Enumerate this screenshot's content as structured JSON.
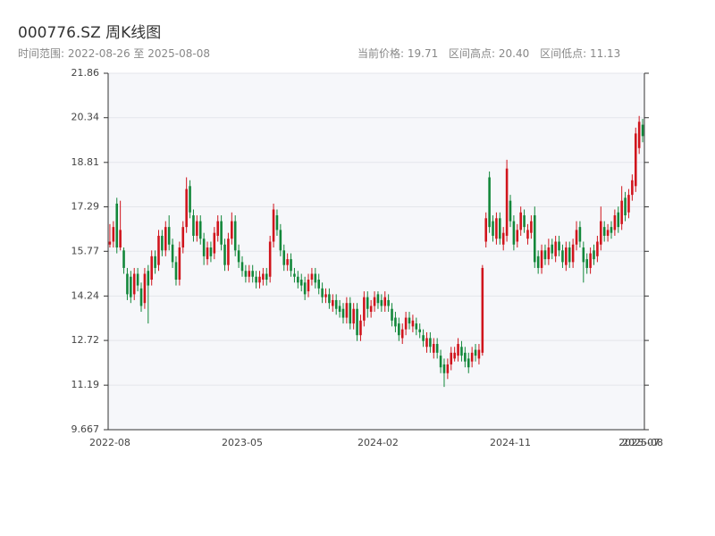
{
  "chart_data": {
    "type": "candlestick",
    "title": "000776.SZ 周K线图",
    "subtitle": "时间范围: 2022-08-26 至 2025-08-08",
    "stats": [
      "当前价格: 19.71",
      "区间高点: 20.40",
      "区间低点: 11.13"
    ],
    "categories": [
      "2022-08",
      null,
      null,
      null,
      null,
      null,
      null,
      null,
      null,
      null,
      null,
      null,
      null,
      null,
      null,
      null,
      null,
      null,
      null,
      null,
      null,
      null,
      null,
      null,
      null,
      null,
      null,
      null,
      null,
      null,
      null,
      null,
      null,
      null,
      null,
      null,
      null,
      null,
      "2023-05",
      null,
      null,
      null,
      null,
      null,
      null,
      null,
      null,
      null,
      null,
      null,
      null,
      null,
      null,
      null,
      null,
      null,
      null,
      null,
      null,
      null,
      null,
      null,
      null,
      null,
      null,
      null,
      null,
      null,
      null,
      null,
      null,
      null,
      null,
      null,
      null,
      null,
      null,
      "2024-02",
      null,
      null,
      null,
      null,
      null,
      null,
      null,
      null,
      null,
      null,
      null,
      null,
      null,
      null,
      null,
      null,
      null,
      null,
      null,
      null,
      null,
      null,
      null,
      null,
      null,
      null,
      null,
      null,
      null,
      null,
      null,
      null,
      null,
      null,
      null,
      null,
      null,
      "2024-11",
      null,
      null,
      null,
      null,
      null,
      null,
      null,
      null,
      null,
      null,
      null,
      null,
      null,
      null,
      null,
      null,
      null,
      null,
      null,
      null,
      null,
      null,
      null,
      null,
      null,
      null,
      null,
      null,
      null,
      null,
      null,
      null,
      null,
      null,
      null,
      null,
      "2025-07",
      "2025-08"
    ],
    "open": [
      16.0,
      16.1,
      17.4,
      15.9,
      15.8,
      15.0,
      14.9,
      14.3,
      15.0,
      14.5,
      14.0,
      15.1,
      14.8,
      15.6,
      15.3,
      16.3,
      15.8,
      16.6,
      16.0,
      15.4,
      14.8,
      15.9,
      16.6,
      18.0,
      17.0,
      16.3,
      16.8,
      16.2,
      15.5,
      15.9,
      15.7,
      16.3,
      16.8,
      16.0,
      15.3,
      16.2,
      16.8,
      15.8,
      15.4,
      15.1,
      14.9,
      15.1,
      14.9,
      14.7,
      14.8,
      15.0,
      14.9,
      16.1,
      17.0,
      16.5,
      15.8,
      15.3,
      15.5,
      15.0,
      14.9,
      14.8,
      14.7,
      14.4,
      14.8,
      15.0,
      14.8,
      14.5,
      14.2,
      14.3,
      13.9,
      14.1,
      13.9,
      13.8,
      13.5,
      14.0,
      13.3,
      13.8,
      12.9,
      13.4,
      14.2,
      13.7,
      13.9,
      14.3,
      14.1,
      13.9,
      14.1,
      13.8,
      13.5,
      13.3,
      12.8,
      13.1,
      13.5,
      13.2,
      13.3,
      13.1,
      12.9,
      12.5,
      12.8,
      12.3,
      12.6,
      12.2,
      11.9,
      11.6,
      11.9,
      12.1,
      12.2,
      12.5,
      12.3,
      12.1,
      12.0,
      12.4,
      12.1,
      12.3,
      16.1,
      18.3,
      16.8,
      16.2,
      16.9,
      16.0,
      16.3,
      17.5,
      16.8,
      16.1,
      16.5,
      17.0,
      16.2,
      16.4,
      17.0,
      15.6,
      15.2,
      15.8,
      15.5,
      16.0,
      15.6,
      16.1,
      15.8,
      15.3,
      15.9,
      15.4,
      16.0,
      16.6,
      15.9,
      15.5,
      15.2,
      15.8,
      15.6,
      16.0,
      16.6,
      16.3,
      16.6,
      16.5,
      17.1,
      16.7,
      17.6,
      17.1,
      17.7,
      18.0,
      19.3,
      20.1
    ],
    "close": [
      16.1,
      16.6,
      15.9,
      16.5,
      15.2,
      14.3,
      14.2,
      15.0,
      14.6,
      13.9,
      15.0,
      14.6,
      15.6,
      15.2,
      16.3,
      15.8,
      16.6,
      16.0,
      15.4,
      14.8,
      15.9,
      16.6,
      17.9,
      17.1,
      16.3,
      16.8,
      16.2,
      15.6,
      15.9,
      15.6,
      16.4,
      16.8,
      16.0,
      15.3,
      16.2,
      16.8,
      15.8,
      15.4,
      15.1,
      14.9,
      15.1,
      14.9,
      14.7,
      14.9,
      15.0,
      14.8,
      16.1,
      17.2,
      16.5,
      15.8,
      15.3,
      15.5,
      15.1,
      14.9,
      14.7,
      14.6,
      14.3,
      14.8,
      15.0,
      14.7,
      14.5,
      14.2,
      14.3,
      14.0,
      14.1,
      13.8,
      13.7,
      13.5,
      14.0,
      13.3,
      13.8,
      12.9,
      13.4,
      14.2,
      13.8,
      13.9,
      14.2,
      14.0,
      13.9,
      14.2,
      13.9,
      13.4,
      13.2,
      12.9,
      13.1,
      13.5,
      13.3,
      13.4,
      13.1,
      13.0,
      12.7,
      12.8,
      12.5,
      12.6,
      12.3,
      11.8,
      11.6,
      11.9,
      12.3,
      12.3,
      12.6,
      12.2,
      12.0,
      11.8,
      12.3,
      12.2,
      12.4,
      15.2,
      16.9,
      16.6,
      16.3,
      16.9,
      16.2,
      16.4,
      18.6,
      16.8,
      16.0,
      16.5,
      17.1,
      16.6,
      16.5,
      16.8,
      15.4,
      15.2,
      15.8,
      15.5,
      15.9,
      15.7,
      16.1,
      15.8,
      15.4,
      15.9,
      15.4,
      16.0,
      16.5,
      16.1,
      15.4,
      15.2,
      15.7,
      15.5,
      16.1,
      16.8,
      16.3,
      16.5,
      16.4,
      17.0,
      16.6,
      17.5,
      17.0,
      17.7,
      18.2,
      19.8,
      20.2,
      19.71
    ],
    "high": [
      16.7,
      16.8,
      17.6,
      17.5,
      15.9,
      15.2,
      15.1,
      15.2,
      15.2,
      14.7,
      15.2,
      15.3,
      15.8,
      15.8,
      16.5,
      16.5,
      16.8,
      17.0,
      16.2,
      15.6,
      16.1,
      16.8,
      18.3,
      18.2,
      17.2,
      17.0,
      17.0,
      16.4,
      16.1,
      16.1,
      16.6,
      17.0,
      17.0,
      16.2,
      16.4,
      17.1,
      17.0,
      16.0,
      15.6,
      15.3,
      15.3,
      15.3,
      15.1,
      15.1,
      15.2,
      15.2,
      16.3,
      17.4,
      17.2,
      16.7,
      16.0,
      15.7,
      15.7,
      15.2,
      15.1,
      15.0,
      14.9,
      15.0,
      15.2,
      15.2,
      15.0,
      14.7,
      14.5,
      14.5,
      14.3,
      14.3,
      14.1,
      14.0,
      14.2,
      14.2,
      14.0,
      14.0,
      13.6,
      14.4,
      14.4,
      14.1,
      14.4,
      14.4,
      14.3,
      14.4,
      14.3,
      14.0,
      13.7,
      13.5,
      13.3,
      13.7,
      13.7,
      13.6,
      13.5,
      13.3,
      13.1,
      13.0,
      13.0,
      12.8,
      12.8,
      12.4,
      12.1,
      12.1,
      12.5,
      12.5,
      12.8,
      12.7,
      12.5,
      12.3,
      12.5,
      12.6,
      12.6,
      15.3,
      17.1,
      18.5,
      17.0,
      17.1,
      17.1,
      16.6,
      18.9,
      17.7,
      17.0,
      16.7,
      17.3,
      17.2,
      16.7,
      17.0,
      17.3,
      15.8,
      16.0,
      16.0,
      16.2,
      16.2,
      16.3,
      16.3,
      16.0,
      16.1,
      16.1,
      16.2,
      16.8,
      16.8,
      16.1,
      15.7,
      15.9,
      16.0,
      16.3,
      17.3,
      16.8,
      16.7,
      16.8,
      17.2,
      17.3,
      18.0,
      17.8,
      17.9,
      18.4,
      20.0,
      20.4,
      20.3
    ],
    "low": [
      15.9,
      15.9,
      15.7,
      15.8,
      15.0,
      14.1,
      14.0,
      14.1,
      14.4,
      13.7,
      13.8,
      13.3,
      14.6,
      15.0,
      15.1,
      15.6,
      15.6,
      15.8,
      15.2,
      14.6,
      14.6,
      15.7,
      16.4,
      16.9,
      16.1,
      16.1,
      16.0,
      15.3,
      15.3,
      15.4,
      15.5,
      16.1,
      15.8,
      15.1,
      15.1,
      16.0,
      15.6,
      15.2,
      14.9,
      14.7,
      14.7,
      14.7,
      14.5,
      14.5,
      14.6,
      14.6,
      14.7,
      15.9,
      16.3,
      15.6,
      15.1,
      15.1,
      14.9,
      14.7,
      14.5,
      14.4,
      14.1,
      14.2,
      14.6,
      14.5,
      14.3,
      14.0,
      14.0,
      13.8,
      13.7,
      13.6,
      13.5,
      13.3,
      13.3,
      13.1,
      13.1,
      12.7,
      12.7,
      13.2,
      13.5,
      13.5,
      13.7,
      13.8,
      13.7,
      13.7,
      13.7,
      13.2,
      13.0,
      12.7,
      12.6,
      12.9,
      13.1,
      13.0,
      12.9,
      12.8,
      12.5,
      12.3,
      12.3,
      12.1,
      12.1,
      11.6,
      11.13,
      11.4,
      11.7,
      12.0,
      12.0,
      12.0,
      11.8,
      11.6,
      11.8,
      12.0,
      11.9,
      12.2,
      15.9,
      16.4,
      16.1,
      16.0,
      16.0,
      15.8,
      16.1,
      16.6,
      15.8,
      15.9,
      16.3,
      16.4,
      16.0,
      16.2,
      15.2,
      15.0,
      15.0,
      15.3,
      15.3,
      15.5,
      15.4,
      15.6,
      15.2,
      15.1,
      15.2,
      15.2,
      15.8,
      15.9,
      14.7,
      15.0,
      15.0,
      15.3,
      15.4,
      15.8,
      16.1,
      16.1,
      16.2,
      16.3,
      16.4,
      16.5,
      16.8,
      16.9,
      17.5,
      17.8,
      19.1,
      19.5
    ],
    "up_color": "#d0141c",
    "down_color": "#12873a",
    "ylim": [
      9.667,
      21.86
    ],
    "yticks": [
      9.667,
      11.19,
      12.72,
      14.24,
      15.77,
      17.29,
      18.81,
      20.34,
      21.86
    ],
    "grid": true
  }
}
